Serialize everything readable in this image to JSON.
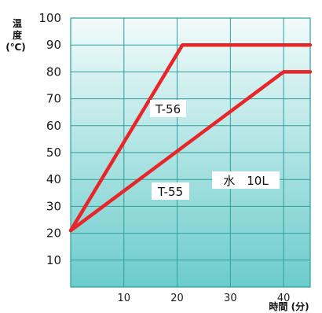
{
  "chart_data": {
    "type": "line",
    "ylabel_lines": [
      "温",
      "度",
      "(℃)"
    ],
    "xlabel": "時間 (分)",
    "xlim": [
      0,
      45
    ],
    "ylim": [
      0,
      100
    ],
    "x_ticks": [
      10,
      20,
      30,
      40
    ],
    "y_ticks": [
      10,
      20,
      30,
      40,
      50,
      60,
      70,
      80,
      90,
      100
    ],
    "grid": true,
    "series": [
      {
        "name": "T-56",
        "color": "#e8262a",
        "x": [
          0,
          21,
          45
        ],
        "y": [
          21,
          90,
          90
        ]
      },
      {
        "name": "T-55",
        "color": "#e8262a",
        "x": [
          0,
          40,
          45
        ],
        "y": [
          21,
          80,
          80
        ]
      }
    ],
    "annotation": "水　10L"
  },
  "colors": {
    "plot_top": "#f2fbfb",
    "plot_bottom": "#6ccccc",
    "grid": "#2e9e9e",
    "line": "#e8262a"
  }
}
